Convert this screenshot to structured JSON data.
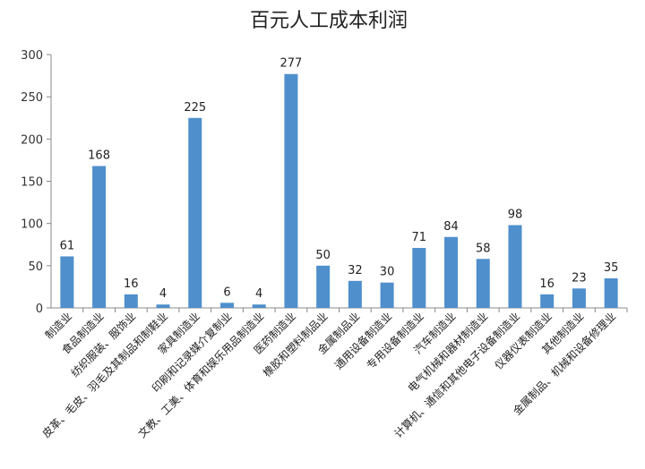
{
  "chart_data": {
    "type": "bar",
    "title": "百元人工成本利润",
    "xlabel": "",
    "ylabel": "",
    "ylim": [
      0,
      300
    ],
    "yticks": [
      0,
      50,
      100,
      150,
      200,
      250,
      300
    ],
    "grid": false,
    "legend": "none",
    "bar_color": "#4f8fcc",
    "categories": [
      "制造业",
      "食品制造业",
      "纺织服装、服饰业",
      "皮革、毛皮、羽毛及其制品和制鞋业",
      "家具制造业",
      "印刷和记录媒介复制业",
      "文教、工美、体育和娱乐用品制造业",
      "医药制造业",
      "橡胶和塑料制品业",
      "金属制品业",
      "通用设备制造业",
      "专用设备制造业",
      "汽车制造业",
      "电气机械和器材制造业",
      "计算机、通信和其他电子设备制造业",
      "仪器仪表制造业",
      "其他制造业",
      "金属制品、机械和设备修理业"
    ],
    "values": [
      61,
      168,
      16,
      4,
      225,
      6,
      4,
      277,
      50,
      32,
      30,
      71,
      84,
      58,
      98,
      16,
      23,
      35
    ]
  }
}
